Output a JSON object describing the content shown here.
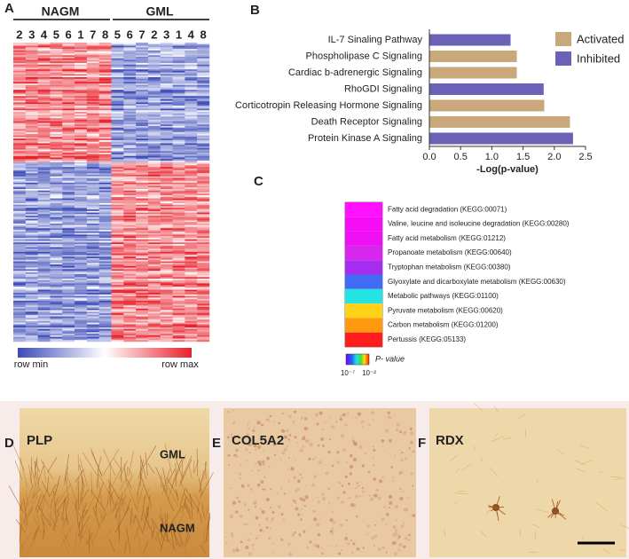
{
  "panel_labels": [
    "A",
    "B",
    "C",
    "D",
    "E",
    "F"
  ],
  "panel_a": {
    "groups": [
      "NAGM",
      "GML"
    ],
    "columns": [
      [
        "2",
        "3",
        "4",
        "5",
        "6",
        "1",
        "7",
        "8"
      ],
      [
        "5",
        "6",
        "7",
        "2",
        "3",
        "1",
        "4",
        "8"
      ]
    ],
    "scale_min": "row min",
    "scale_max": "row max"
  },
  "chart_data": {
    "type": "hbar",
    "categories": [
      "IL-7 Sinaling Pathway",
      "Phospholipase C Signaling",
      "Cardiac b-adrenergic Signaling",
      "RhoGDI Signaling",
      "Corticotropin Releasing Hormone Signaling",
      "Death Receptor Signaling",
      "Protein Kinase A Signaling"
    ],
    "series": [
      {
        "name": "Activated",
        "color": "#c9a87b",
        "values": [
          null,
          1.4,
          1.4,
          null,
          1.84,
          2.25,
          null
        ]
      },
      {
        "name": "Inhibited",
        "color": "#6b62b8",
        "values": [
          1.3,
          null,
          null,
          1.83,
          null,
          null,
          2.3
        ]
      }
    ],
    "xlabel": "-Log(p-value)",
    "xlim": [
      0,
      2.5
    ],
    "xticks": [
      {
        "value": 0,
        "label": "0.0"
      },
      0.5,
      {
        "value": 1,
        "label": "1.0"
      },
      1.5,
      {
        "value": 2,
        "label": "2.0"
      },
      2.5
    ],
    "legend": "upper-right"
  },
  "panel_c": {
    "terms": [
      "Fatty acid degradation (KEGG:00071)",
      "Valine, leucine and isoleucine degradation (KEGG:00280)",
      "Fatty acid metabolism (KEGG:01212)",
      "Propanoate metabolism  (KEGG:00640)",
      "Tryptophan metabolism (KEGG:00380)",
      "Glyoxylate and dicarboxylate metabolism (KEGG:00630)",
      "Metabolic pathways (KEGG:01100)",
      "Pyruvate metabolism (KEGG:00620)",
      "Carbon metabolism (KEGG:01200)",
      "Pertussis (KEGG:05133)"
    ],
    "colors": [
      "#ff10ff",
      "#f70cf7",
      "#ee10f2",
      "#d726ee",
      "#a62df0",
      "#3f6cf2",
      "#26e3e3",
      "#ffd21a",
      "#ff9a10",
      "#ff1c1c"
    ],
    "scale_title": "P- value",
    "scale_min": "10⁻⁷",
    "scale_max": "10⁻²"
  },
  "micrographs": [
    {
      "label": "PLP",
      "regions": [
        "GML",
        "NAGM"
      ]
    },
    {
      "label": "COL5A2"
    },
    {
      "label": "RDX"
    }
  ]
}
